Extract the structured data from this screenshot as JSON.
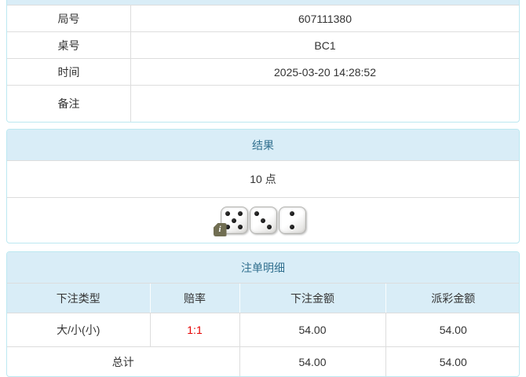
{
  "colors": {
    "panel_border": "#bce8f1",
    "panel_heading_bg": "#d9edf7",
    "panel_heading_text": "#31708f",
    "table_border": "#dddddd",
    "body_text": "#333333",
    "odds_red": "#e60000",
    "info_badge_bg": "#716e52",
    "die_pip": "#111111"
  },
  "info_panel": {
    "rows": [
      {
        "label": "局号",
        "value": "607111380"
      },
      {
        "label": "桌号",
        "value": "BC1"
      },
      {
        "label": "时间",
        "value": "2025-03-20 14:28:52"
      },
      {
        "label": "备注",
        "value": ""
      }
    ]
  },
  "result_panel": {
    "title": "结果",
    "points": "10 点",
    "dice": [
      5,
      3,
      2
    ],
    "info_icon": "i"
  },
  "bets_panel": {
    "title": "注单明细",
    "columns": [
      "下注类型",
      "赔率",
      "下注金额",
      "派彩金额"
    ],
    "rows": [
      {
        "type": "大/小(小)",
        "odds": "1:1",
        "bet_amount": "54.00",
        "payout_amount": "54.00"
      }
    ],
    "total": {
      "label": "总计",
      "bet_amount": "54.00",
      "payout_amount": "54.00"
    }
  }
}
